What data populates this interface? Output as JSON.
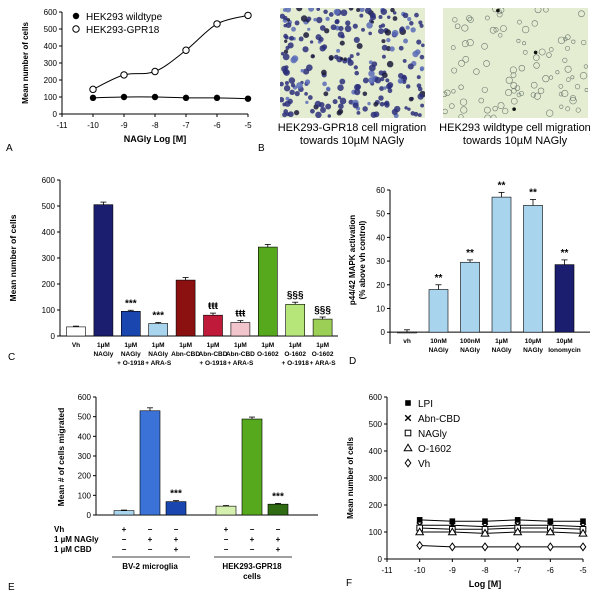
{
  "panel_labels": [
    "A",
    "B",
    "C",
    "D",
    "E",
    "F"
  ],
  "micrographs": [
    {
      "caption_line1": "HEK293-GPR18 cell migration",
      "caption_line2": "towards 10µM NAGly",
      "texture": "dense-stained-cells"
    },
    {
      "caption_line1": "HEK293 wildtype cell migration",
      "caption_line2": "towards 10µM NAGly",
      "texture": "sparse-cells"
    }
  ],
  "colors": {
    "navy": "#1b1e6e",
    "blue_dark": "#1a46b0",
    "blue_mid": "#3b72d8",
    "blue_light": "#a9d4ee",
    "maroon": "#8b1010",
    "pink": "#f2c4cc",
    "green": "#56a81c",
    "green_light": "#b6e67a",
    "green_dark": "#2f6b12",
    "green_pale": "#d6f0b0",
    "white": "#ffffff",
    "micro_bg": "#e4ecd2"
  },
  "chart_data": [
    {
      "id": "A",
      "type": "line",
      "xlabel": "NAGly Log [M]",
      "ylabel": "Mean number of cells",
      "xlim": [
        -11,
        -5
      ],
      "ylim": [
        0,
        600
      ],
      "xticks": [
        -11,
        -10,
        -9,
        -8,
        -7,
        -6,
        -5
      ],
      "yticks": [
        0,
        100,
        200,
        300,
        400,
        500,
        600
      ],
      "series": [
        {
          "name": "HEK293 wildtype",
          "marker": "filled-circle",
          "x": [
            -10,
            -9,
            -8,
            -7,
            -6,
            -5
          ],
          "y": [
            95,
            100,
            100,
            95,
            95,
            90
          ]
        },
        {
          "name": "HEK293-GPR18",
          "marker": "open-circle",
          "x": [
            -10,
            -9,
            -8,
            -7,
            -6,
            -5
          ],
          "y": [
            145,
            230,
            250,
            375,
            530,
            580
          ]
        }
      ]
    },
    {
      "id": "C",
      "type": "bar",
      "ylabel": "Mean number of cells",
      "ylim": [
        0,
        600
      ],
      "yticks": [
        0,
        100,
        200,
        300,
        400,
        500,
        600
      ],
      "categories": [
        {
          "lines": [
            "Vh"
          ]
        },
        {
          "lines": [
            "1µM",
            "NAGly"
          ]
        },
        {
          "lines": [
            "1µM",
            "NAGly",
            "+ O-1918"
          ]
        },
        {
          "lines": [
            "1µM",
            "NAGly",
            "+ ARA-S"
          ]
        },
        {
          "lines": [
            "1µM",
            "Abn-CBD"
          ]
        },
        {
          "lines": [
            "1µM",
            "Abn-CBD",
            "+ O-1918"
          ]
        },
        {
          "lines": [
            "1µM",
            "Abn-CBD",
            "+ ARA-S"
          ]
        },
        {
          "lines": [
            "1µM",
            "O-1602"
          ]
        },
        {
          "lines": [
            "1µM",
            "O-1602",
            "+ O-1918"
          ]
        },
        {
          "lines": [
            "1µM",
            "O-1602",
            "+ ARA-S"
          ]
        }
      ],
      "values": [
        35,
        505,
        95,
        48,
        215,
        80,
        52,
        342,
        122,
        65
      ],
      "errors": [
        3,
        10,
        4,
        4,
        10,
        8,
        7,
        10,
        8,
        8
      ],
      "colors": [
        "#ffffff",
        "#1b1e6e",
        "#1a46b0",
        "#a9d4ee",
        "#8b1010",
        "#c01a3a",
        "#f2c4cc",
        "#56a81c",
        "#b6e67a",
        "#9ccf55"
      ],
      "annotations": [
        "",
        "",
        "***",
        "***",
        "",
        "ŧŧŧ",
        "ŧŧŧ",
        "",
        "§§§",
        "§§§"
      ]
    },
    {
      "id": "D",
      "type": "bar",
      "ylabel_lines": [
        "p44/42 MAPK activation",
        "(% above vh control)"
      ],
      "ylim": [
        -5,
        60
      ],
      "yticks": [
        0,
        10,
        20,
        30,
        40,
        50,
        60
      ],
      "categories": [
        {
          "lines": [
            "vh"
          ]
        },
        {
          "lines": [
            "10nM",
            "NAGly"
          ]
        },
        {
          "lines": [
            "100nM",
            "NAGly"
          ]
        },
        {
          "lines": [
            "1µM",
            "NAGly"
          ]
        },
        {
          "lines": [
            "10µM",
            "NAGly"
          ]
        },
        {
          "lines": [
            "10µM",
            "Ionomycin"
          ]
        }
      ],
      "values": [
        0,
        18,
        29.5,
        57,
        53.5,
        28.5
      ],
      "errors": [
        1,
        2,
        1,
        2,
        2.5,
        2
      ],
      "colors": [
        "#ffffff",
        "#a9d4ee",
        "#a9d4ee",
        "#a9d4ee",
        "#a9d4ee",
        "#1b1e6e"
      ],
      "annotations": [
        "",
        "**",
        "**",
        "**",
        "**",
        "**"
      ]
    },
    {
      "id": "E",
      "type": "bar",
      "ylabel": "Mean # of cells migrated",
      "ylim": [
        0,
        600
      ],
      "yticks": [
        0,
        100,
        200,
        300,
        400,
        500,
        600
      ],
      "values": [
        22,
        530,
        68,
        45,
        488,
        55
      ],
      "errors": [
        3,
        15,
        5,
        3,
        10,
        4
      ],
      "colors": [
        "#a9d4ee",
        "#3b72d8",
        "#1a46b0",
        "#d6f0b0",
        "#56a81c",
        "#2f6b12"
      ],
      "annotations": [
        "",
        "",
        "***",
        "",
        "",
        "***"
      ],
      "condition_rows": [
        {
          "label": "Vh",
          "marks": [
            "+",
            "−",
            "−",
            "+",
            "−",
            "−"
          ]
        },
        {
          "label": "1 µM NAGly",
          "marks": [
            "−",
            "+",
            "+",
            "−",
            "+",
            "+"
          ]
        },
        {
          "label": "1 µM CBD",
          "marks": [
            "−",
            "−",
            "+",
            "−",
            "−",
            "+"
          ]
        }
      ],
      "groups": [
        {
          "lines": [
            "BV-2 microglia"
          ]
        },
        {
          "lines": [
            "HEK293-GPR18",
            "cells"
          ]
        }
      ]
    },
    {
      "id": "F",
      "type": "line",
      "xlabel": "Log [M]",
      "ylabel": "Mean number of cells",
      "xlim": [
        -11,
        -5
      ],
      "ylim": [
        0,
        600
      ],
      "xticks": [
        -11,
        -10,
        -9,
        -8,
        -7,
        -6,
        -5
      ],
      "yticks": [
        0,
        100,
        200,
        300,
        400,
        500,
        600
      ],
      "series": [
        {
          "name": "LPI",
          "marker": "filled-square",
          "x": [
            -10,
            -9,
            -8,
            -7,
            -6,
            -5
          ],
          "y": [
            145,
            140,
            140,
            145,
            140,
            140
          ]
        },
        {
          "name": "Abn-CBD",
          "marker": "cross",
          "x": [
            -10,
            -9,
            -8,
            -7,
            -6,
            -5
          ],
          "y": [
            125,
            125,
            120,
            125,
            125,
            120
          ]
        },
        {
          "name": "NAGly",
          "marker": "open-square",
          "x": [
            -10,
            -9,
            -8,
            -7,
            -6,
            -5
          ],
          "y": [
            115,
            110,
            110,
            115,
            115,
            110
          ]
        },
        {
          "name": "O-1602",
          "marker": "open-triangle",
          "x": [
            -10,
            -9,
            -8,
            -7,
            -6,
            -5
          ],
          "y": [
            100,
            100,
            95,
            100,
            100,
            95
          ]
        },
        {
          "name": "Vh",
          "marker": "open-diamond",
          "x": [
            -10,
            -9,
            -8,
            -7,
            -6,
            -5
          ],
          "y": [
            50,
            45,
            45,
            45,
            45,
            45
          ]
        }
      ]
    }
  ]
}
